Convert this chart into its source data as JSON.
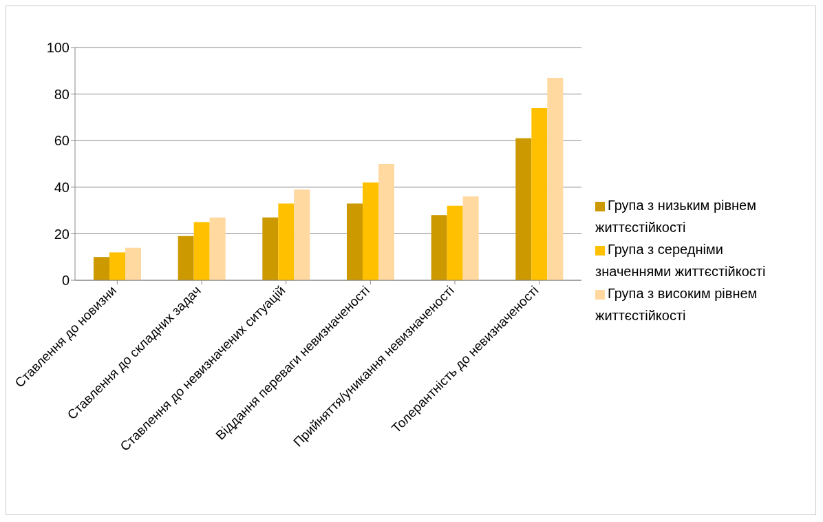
{
  "chart_data": {
    "type": "bar",
    "categories": [
      "Ставлення до новизни",
      "Ставлення до складних задач",
      "Ставлення до невизначених ситуацій",
      "Віддання переваги невизначеності",
      "Прийняття/уникання невизначеності",
      "Толерантність до невизначеності"
    ],
    "series": [
      {
        "name": "Група з низьким рівнем життєстійкості",
        "color": "#cc9900",
        "values": [
          10,
          19,
          27,
          33,
          28,
          61
        ]
      },
      {
        "name": "Група з середніми значеннями життєстійкості",
        "color": "#ffc000",
        "values": [
          12,
          25,
          33,
          42,
          32,
          74
        ]
      },
      {
        "name": "Група з високим рівнем життєстійкості",
        "color": "#ffd9a0",
        "values": [
          14,
          27,
          39,
          50,
          36,
          87
        ]
      }
    ],
    "ylim": [
      0,
      100
    ],
    "yticks": [
      0,
      20,
      40,
      60,
      80,
      100
    ],
    "grid": "y",
    "legend": "right"
  }
}
